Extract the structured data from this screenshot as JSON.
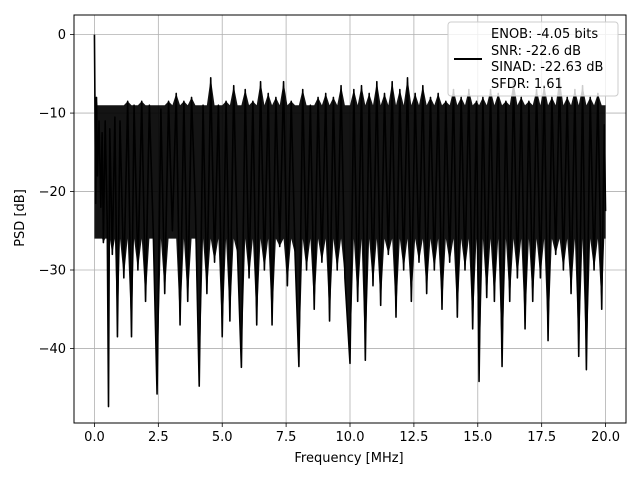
{
  "chart_data": {
    "type": "line",
    "xlabel": "Frequency [MHz]",
    "ylabel": "PSD [dB]",
    "xlim": [
      -0.8,
      20.8
    ],
    "ylim": [
      -49.5,
      2.5
    ],
    "xticks": [
      0.0,
      2.5,
      5.0,
      7.5,
      10.0,
      12.5,
      15.0,
      17.5,
      20.0
    ],
    "xtick_labels": [
      "0.0",
      "2.5",
      "5.0",
      "7.5",
      "10.0",
      "12.5",
      "15.0",
      "17.5",
      "20.0"
    ],
    "yticks": [
      0,
      -10,
      -20,
      -30,
      -40
    ],
    "ytick_labels": [
      "0",
      "−10",
      "−20",
      "−30",
      "−40"
    ],
    "grid": true,
    "legend_position": "top-right",
    "series": [
      {
        "color": "#000000",
        "description": "dense noise-floor spectrum between roughly -10 and -30 dB with a 0 dB peak at 0 MHz",
        "points": [
          [
            0.0,
            0.0
          ],
          [
            0.05,
            -21.5
          ],
          [
            0.08,
            -8.0
          ],
          [
            0.12,
            -18.0
          ],
          [
            0.18,
            -11.0
          ],
          [
            0.25,
            -22.0
          ],
          [
            0.3,
            -12.5
          ],
          [
            0.35,
            -26.5
          ],
          [
            0.42,
            -11.0
          ],
          [
            0.5,
            -24.0
          ],
          [
            0.55,
            -47.4
          ],
          [
            0.6,
            -12.0
          ],
          [
            0.7,
            -28.0
          ],
          [
            0.8,
            -10.5
          ],
          [
            0.9,
            -38.5
          ],
          [
            1.0,
            -11.0
          ],
          [
            1.15,
            -31.0
          ],
          [
            1.3,
            -8.5
          ],
          [
            1.45,
            -38.5
          ],
          [
            1.55,
            -9.0
          ],
          [
            1.7,
            -30.0
          ],
          [
            1.85,
            -8.5
          ],
          [
            2.0,
            -34.0
          ],
          [
            2.15,
            -9.0
          ],
          [
            2.3,
            -25.0
          ],
          [
            2.45,
            -45.8
          ],
          [
            2.6,
            -9.5
          ],
          [
            2.75,
            -33.0
          ],
          [
            2.9,
            -8.5
          ],
          [
            3.05,
            -25.0
          ],
          [
            3.2,
            -7.5
          ],
          [
            3.35,
            -37.0
          ],
          [
            3.5,
            -8.5
          ],
          [
            3.65,
            -34.0
          ],
          [
            3.8,
            -8.0
          ],
          [
            3.95,
            -22.0
          ],
          [
            4.1,
            -44.8
          ],
          [
            4.25,
            -9.0
          ],
          [
            4.4,
            -33.0
          ],
          [
            4.55,
            -5.5
          ],
          [
            4.7,
            -29.0
          ],
          [
            4.85,
            -9.0
          ],
          [
            5.0,
            -38.5
          ],
          [
            5.15,
            -8.5
          ],
          [
            5.3,
            -36.5
          ],
          [
            5.45,
            -6.5
          ],
          [
            5.6,
            -28.0
          ],
          [
            5.75,
            -42.4
          ],
          [
            5.9,
            -7.0
          ],
          [
            6.05,
            -31.0
          ],
          [
            6.2,
            -8.5
          ],
          [
            6.35,
            -37.0
          ],
          [
            6.5,
            -6.0
          ],
          [
            6.65,
            -30.0
          ],
          [
            6.8,
            -7.5
          ],
          [
            6.95,
            -37.0
          ],
          [
            7.1,
            -8.0
          ],
          [
            7.25,
            -27.0
          ],
          [
            7.4,
            -6.0
          ],
          [
            7.55,
            -32.0
          ],
          [
            7.7,
            -8.5
          ],
          [
            7.85,
            -28.0
          ],
          [
            8.0,
            -42.3
          ],
          [
            8.15,
            -7.0
          ],
          [
            8.3,
            -30.0
          ],
          [
            8.45,
            -9.0
          ],
          [
            8.6,
            -35.0
          ],
          [
            8.75,
            -8.0
          ],
          [
            8.9,
            -29.0
          ],
          [
            9.05,
            -7.5
          ],
          [
            9.2,
            -36.5
          ],
          [
            9.35,
            -8.0
          ],
          [
            9.5,
            -30.0
          ],
          [
            9.65,
            -6.5
          ],
          [
            9.8,
            -31.0
          ],
          [
            10.0,
            -41.9
          ],
          [
            10.15,
            -7.0
          ],
          [
            10.3,
            -34.0
          ],
          [
            10.45,
            -6.5
          ],
          [
            10.6,
            -41.5
          ],
          [
            10.75,
            -7.5
          ],
          [
            10.9,
            -32.0
          ],
          [
            11.05,
            -6.0
          ],
          [
            11.2,
            -34.5
          ],
          [
            11.35,
            -7.5
          ],
          [
            11.5,
            -28.0
          ],
          [
            11.65,
            -6.0
          ],
          [
            11.8,
            -36.0
          ],
          [
            11.95,
            -7.0
          ],
          [
            12.1,
            -30.0
          ],
          [
            12.25,
            -5.5
          ],
          [
            12.4,
            -34.0
          ],
          [
            12.55,
            -7.5
          ],
          [
            12.7,
            -29.0
          ],
          [
            12.85,
            -6.5
          ],
          [
            13.0,
            -33.0
          ],
          [
            13.15,
            -8.0
          ],
          [
            13.3,
            -30.0
          ],
          [
            13.45,
            -7.5
          ],
          [
            13.6,
            -35.0
          ],
          [
            13.75,
            -8.5
          ],
          [
            13.9,
            -29.0
          ],
          [
            14.05,
            -7.0
          ],
          [
            14.2,
            -36.0
          ],
          [
            14.35,
            -8.0
          ],
          [
            14.5,
            -30.0
          ],
          [
            14.65,
            -7.0
          ],
          [
            14.8,
            -37.5
          ],
          [
            14.95,
            -8.5
          ],
          [
            15.05,
            -44.2
          ],
          [
            15.2,
            -8.0
          ],
          [
            15.35,
            -33.5
          ],
          [
            15.5,
            -7.0
          ],
          [
            15.65,
            -34.0
          ],
          [
            15.8,
            -7.5
          ],
          [
            15.95,
            -42.3
          ],
          [
            16.1,
            -8.5
          ],
          [
            16.25,
            -34.0
          ],
          [
            16.4,
            -6.0
          ],
          [
            16.55,
            -31.0
          ],
          [
            16.7,
            -8.0
          ],
          [
            16.85,
            -37.5
          ],
          [
            17.0,
            -8.5
          ],
          [
            17.15,
            -34.0
          ],
          [
            17.3,
            -7.0
          ],
          [
            17.45,
            -31.0
          ],
          [
            17.6,
            -6.5
          ],
          [
            17.75,
            -39.0
          ],
          [
            17.9,
            -8.0
          ],
          [
            18.05,
            -28.0
          ],
          [
            18.2,
            -5.5
          ],
          [
            18.35,
            -30.0
          ],
          [
            18.5,
            -8.0
          ],
          [
            18.65,
            -33.0
          ],
          [
            18.8,
            -7.0
          ],
          [
            18.95,
            -41.0
          ],
          [
            19.1,
            -6.5
          ],
          [
            19.25,
            -42.7
          ],
          [
            19.4,
            -8.0
          ],
          [
            19.55,
            -30.0
          ],
          [
            19.7,
            -7.5
          ],
          [
            19.85,
            -35.0
          ],
          [
            19.95,
            -11.5
          ],
          [
            20.0,
            -22.5
          ]
        ]
      }
    ],
    "legend": {
      "lines": [
        "ENOB: -4.05 bits",
        "SNR: -22.6 dB",
        "SINAD: -22.63 dB",
        "SFDR: 1.61"
      ]
    }
  }
}
